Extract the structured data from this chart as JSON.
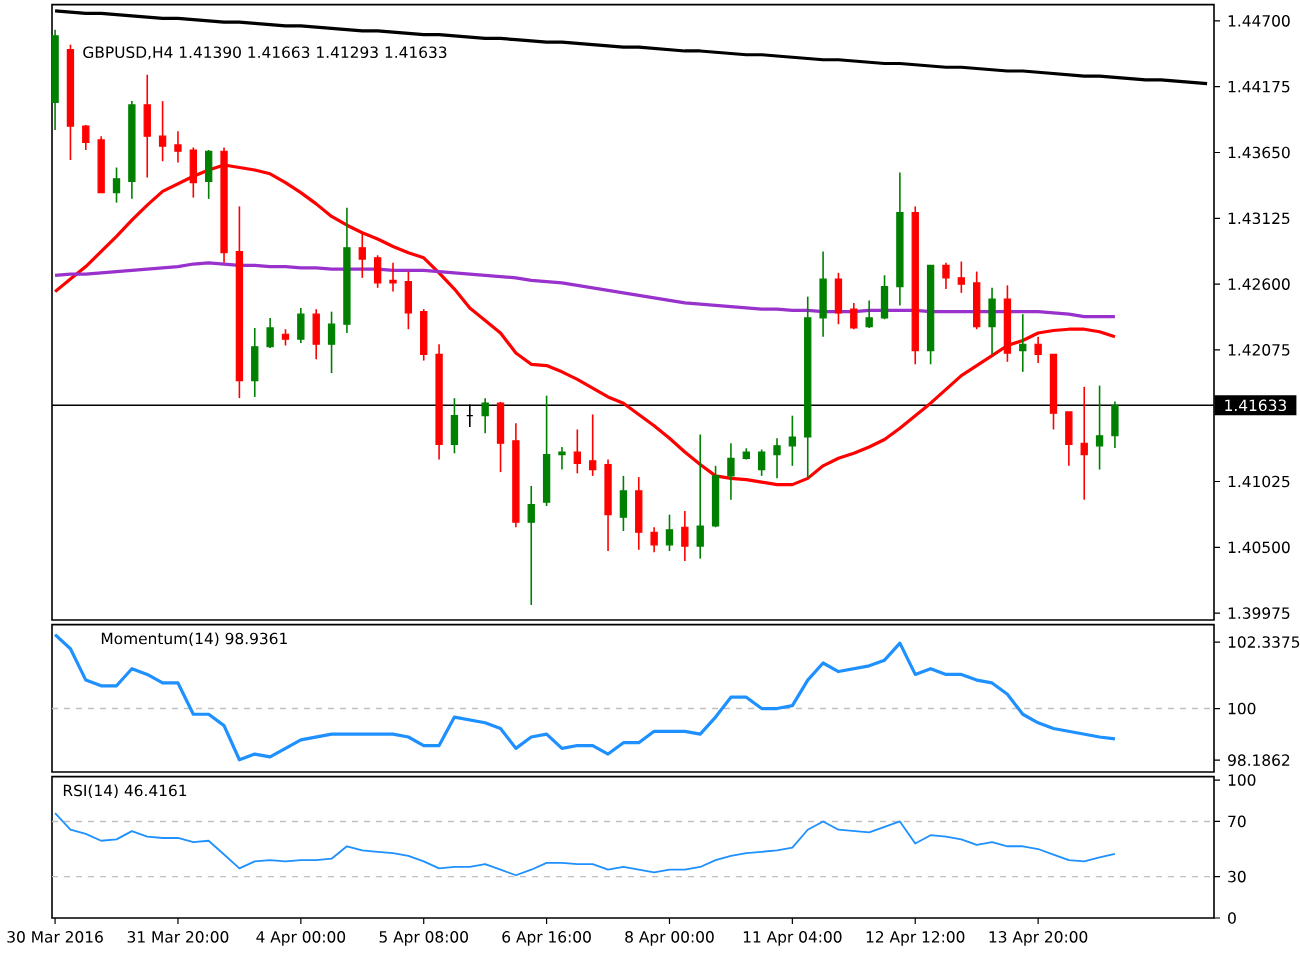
{
  "chart_data": [
    {
      "type": "candlestick",
      "title": "GBPUSD,H4 1.41390 1.41663 1.41293 1.41633",
      "tick_labels": "y",
      "categories": [
        null,
        null,
        null,
        null,
        null,
        null,
        null,
        null,
        null,
        null,
        null,
        null,
        null,
        null,
        null,
        null,
        null,
        null,
        null,
        null,
        null,
        null,
        null,
        null,
        null,
        null,
        null,
        null,
        null,
        null,
        null,
        null,
        null,
        null,
        null,
        null,
        null,
        null,
        null,
        null,
        null,
        null,
        null,
        null,
        null,
        null,
        null,
        null,
        null,
        null,
        null,
        null,
        null,
        null,
        null,
        null,
        null,
        null,
        null,
        null,
        null,
        null,
        null,
        null,
        null,
        null,
        null,
        null,
        null,
        null,
        null,
        null,
        null,
        null,
        null,
        null
      ],
      "ohlc": [
        [
          1.4405,
          1.4463,
          1.4383,
          1.4458
        ],
        [
          1.4447,
          1.4451,
          1.4359,
          1.4386
        ],
        [
          1.4386,
          1.4387,
          1.4367,
          1.4373
        ],
        [
          1.4375,
          1.4378,
          1.4333,
          1.4333
        ],
        [
          1.4333,
          1.4353,
          1.4325,
          1.4344
        ],
        [
          1.4342,
          1.4406,
          1.4328,
          1.4403
        ],
        [
          1.4403,
          1.4427,
          1.4345,
          1.4378
        ],
        [
          1.4378,
          1.4406,
          1.4358,
          1.437
        ],
        [
          1.4371,
          1.4382,
          1.4357,
          1.4366
        ],
        [
          1.4367,
          1.4369,
          1.4329,
          1.4341
        ],
        [
          1.4342,
          1.4367,
          1.4328,
          1.4366
        ],
        [
          1.4366,
          1.4369,
          1.4277,
          1.4285
        ],
        [
          1.4286,
          1.4322,
          1.4169,
          1.4183
        ],
        [
          1.4183,
          1.4225,
          1.417,
          1.421
        ],
        [
          1.421,
          1.4233,
          1.4209,
          1.4225
        ],
        [
          1.422,
          1.4224,
          1.4211,
          1.4216
        ],
        [
          1.4216,
          1.4241,
          1.4213,
          1.4236
        ],
        [
          1.4236,
          1.424,
          1.42,
          1.4212
        ],
        [
          1.4212,
          1.4238,
          1.4189,
          1.4228
        ],
        [
          1.4228,
          1.4321,
          1.4221,
          1.4289
        ],
        [
          1.4289,
          1.4301,
          1.4265,
          1.428
        ],
        [
          1.4281,
          1.4283,
          1.4257,
          1.4261
        ],
        [
          1.4263,
          1.4277,
          1.4254,
          1.4261
        ],
        [
          1.4262,
          1.427,
          1.4224,
          1.4237
        ],
        [
          1.4238,
          1.424,
          1.4199,
          1.4204
        ],
        [
          1.4204,
          1.4212,
          1.412,
          1.4132
        ],
        [
          1.4132,
          1.4169,
          1.4125,
          1.4155
        ],
        [
          1.4155,
          1.4164,
          1.4146,
          1.4155
        ],
        [
          1.4155,
          1.4169,
          1.4141,
          1.4165
        ],
        [
          1.4165,
          1.4166,
          1.411,
          1.4133
        ],
        [
          1.4135,
          1.4149,
          1.4066,
          1.407
        ],
        [
          1.407,
          1.4099,
          1.4004,
          1.4084
        ],
        [
          1.4086,
          1.4171,
          1.4083,
          1.4124
        ],
        [
          1.4124,
          1.413,
          1.4112,
          1.4126
        ],
        [
          1.4126,
          1.4144,
          1.4109,
          1.4117
        ],
        [
          1.4119,
          1.4156,
          1.4107,
          1.4112
        ],
        [
          1.4116,
          1.412,
          1.4047,
          1.4076
        ],
        [
          1.4074,
          1.4107,
          1.4063,
          1.4095
        ],
        [
          1.4095,
          1.4106,
          1.4048,
          1.4062
        ],
        [
          1.4062,
          1.4066,
          1.4046,
          1.4052
        ],
        [
          1.4052,
          1.4076,
          1.4047,
          1.4064
        ],
        [
          1.4066,
          1.4079,
          1.4039,
          1.4051
        ],
        [
          1.4051,
          1.414,
          1.4041,
          1.4067
        ],
        [
          1.4067,
          1.4115,
          1.4066,
          1.4107
        ],
        [
          1.4107,
          1.4133,
          1.4088,
          1.4121
        ],
        [
          1.4121,
          1.4129,
          1.412,
          1.4126
        ],
        [
          1.4112,
          1.4128,
          1.4107,
          1.4126
        ],
        [
          1.4124,
          1.4137,
          1.4105,
          1.4131
        ],
        [
          1.4131,
          1.4155,
          1.4115,
          1.4138
        ],
        [
          1.4138,
          1.425,
          1.4105,
          1.4233
        ],
        [
          1.4233,
          1.4286,
          1.4218,
          1.4264
        ],
        [
          1.4264,
          1.4269,
          1.4228,
          1.4237
        ],
        [
          1.424,
          1.4245,
          1.4224,
          1.4225
        ],
        [
          1.4226,
          1.4247,
          1.4225,
          1.4233
        ],
        [
          1.4233,
          1.4267,
          1.4232,
          1.4258
        ],
        [
          1.4258,
          1.4349,
          1.4243,
          1.4317
        ],
        [
          1.4317,
          1.4322,
          1.4196,
          1.4207
        ],
        [
          1.4207,
          1.4275,
          1.4196,
          1.4275
        ],
        [
          1.4275,
          1.4277,
          1.4256,
          1.4265
        ],
        [
          1.4265,
          1.4278,
          1.4253,
          1.426
        ],
        [
          1.4261,
          1.427,
          1.4224,
          1.4226
        ],
        [
          1.4226,
          1.4257,
          1.4204,
          1.4248
        ],
        [
          1.4248,
          1.4259,
          1.4198,
          1.4205
        ],
        [
          1.4207,
          1.4236,
          1.419,
          1.4212
        ],
        [
          1.4212,
          1.4218,
          1.4197,
          1.4204
        ],
        [
          1.4204,
          1.4204,
          1.4144,
          1.4157
        ],
        [
          1.4158,
          1.4158,
          1.4115,
          1.4132
        ],
        [
          1.4133,
          1.4178,
          1.4088,
          1.4124
        ],
        [
          1.4131,
          1.4179,
          1.4112,
          1.4139
        ],
        [
          1.4139,
          1.41663,
          1.41293,
          1.41633
        ],
        null,
        null,
        null,
        null,
        null,
        null
      ],
      "colors": [
        "#008000",
        "#ff0000",
        "#ff0000",
        "#ff0000",
        "#008000",
        "#008000",
        "#ff0000",
        "#ff0000",
        "#ff0000",
        "#ff0000",
        "#008000",
        "#ff0000",
        "#ff0000",
        "#008000",
        "#008000",
        "#ff0000",
        "#008000",
        "#ff0000",
        "#008000",
        "#008000",
        "#ff0000",
        "#ff0000",
        "#ff0000",
        "#ff0000",
        "#ff0000",
        "#ff0000",
        "#008000",
        "#000000",
        "#008000",
        "#ff0000",
        "#ff0000",
        "#008000",
        "#008000",
        "#008000",
        "#ff0000",
        "#ff0000",
        "#ff0000",
        "#008000",
        "#ff0000",
        "#ff0000",
        "#008000",
        "#ff0000",
        "#008000",
        "#008000",
        "#008000",
        "#008000",
        "#008000",
        "#008000",
        "#008000",
        "#008000",
        "#008000",
        "#ff0000",
        "#ff0000",
        "#008000",
        "#008000",
        "#008000",
        "#ff0000",
        "#008000",
        "#ff0000",
        "#ff0000",
        "#ff0000",
        "#008000",
        "#ff0000",
        "#008000",
        "#ff0000",
        "#ff0000",
        "#ff0000",
        "#ff0000",
        "#008000",
        "#008000",
        null,
        null,
        null,
        null,
        null,
        null
      ],
      "series": [
        {
          "type": "line",
          "color": "#ff0000",
          "values": [
            1.4254,
            1.4264,
            1.4274,
            1.4286,
            1.4298,
            1.4311,
            1.4323,
            1.4334,
            1.434,
            1.4346,
            1.4351,
            1.4355,
            1.4353,
            1.4351,
            1.4348,
            1.4341,
            1.4333,
            1.4324,
            1.4314,
            1.4307,
            1.4301,
            1.4296,
            1.429,
            1.4285,
            1.4281,
            1.4269,
            1.4256,
            1.4241,
            1.4231,
            1.4221,
            1.4205,
            1.4196,
            1.4195,
            1.419,
            1.4184,
            1.4177,
            1.417,
            1.4165,
            1.4156,
            1.4147,
            1.4137,
            1.4126,
            1.4116,
            1.4107,
            1.4105,
            1.4104,
            1.4102,
            1.41,
            1.41,
            1.4105,
            1.4115,
            1.4121,
            1.4125,
            1.413,
            1.4136,
            1.4145,
            1.4155,
            1.4165,
            1.4176,
            1.4187,
            1.4195,
            1.4203,
            1.4211,
            1.4215,
            1.4221,
            1.4223,
            1.4224,
            1.4224,
            1.4222,
            1.4218,
            null,
            null,
            null,
            null,
            null,
            null
          ]
        },
        {
          "type": "line",
          "color": "#9932cc",
          "values": [
            1.4267,
            1.4268,
            1.4268,
            1.4269,
            1.427,
            1.4271,
            1.4272,
            1.4273,
            1.4274,
            1.4276,
            1.4277,
            1.4276,
            1.4275,
            1.4275,
            1.4274,
            1.4274,
            1.4273,
            1.4273,
            1.4272,
            1.4272,
            1.4272,
            1.4272,
            1.4271,
            1.4271,
            1.4271,
            1.427,
            1.4269,
            1.4268,
            1.4267,
            1.4266,
            1.4265,
            1.4263,
            1.4262,
            1.4261,
            1.4259,
            1.4257,
            1.4255,
            1.4253,
            1.4251,
            1.4249,
            1.4247,
            1.4245,
            1.4244,
            1.4243,
            1.4242,
            1.4241,
            1.424,
            1.424,
            1.4239,
            1.4239,
            1.4238,
            1.4238,
            1.4238,
            1.4239,
            1.4239,
            1.4239,
            1.4239,
            1.4238,
            1.4238,
            1.4238,
            1.4238,
            1.4238,
            1.4238,
            1.4238,
            1.4238,
            1.4237,
            1.4236,
            1.4234,
            1.4234,
            1.4234,
            null,
            null,
            null,
            null,
            null,
            null
          ]
        },
        {
          "type": "line",
          "color": "#000000",
          "values": [
            1.4478,
            1.4477,
            1.4476,
            1.4476,
            1.4475,
            1.4474,
            1.4473,
            1.4472,
            1.4472,
            1.4471,
            1.447,
            1.4469,
            1.4469,
            1.4468,
            1.4467,
            1.4466,
            1.4466,
            1.4465,
            1.4464,
            1.4463,
            1.4462,
            1.4462,
            1.4461,
            1.446,
            1.4459,
            1.4459,
            1.4458,
            1.4457,
            1.4456,
            1.4456,
            1.4455,
            1.4454,
            1.4453,
            1.4453,
            1.4452,
            1.4451,
            1.445,
            1.4449,
            1.4449,
            1.4448,
            1.4447,
            1.4446,
            1.4446,
            1.4445,
            1.4444,
            1.4443,
            1.4443,
            1.4442,
            1.4441,
            1.444,
            1.4439,
            1.4439,
            1.4438,
            1.4437,
            1.4436,
            1.4436,
            1.4435,
            1.4434,
            1.4433,
            1.4433,
            1.4432,
            1.4431,
            1.443,
            1.443,
            1.4429,
            1.4428,
            1.4427,
            1.4426,
            1.4426,
            1.4425,
            1.4424,
            1.4423,
            1.4423,
            1.4422,
            1.4421,
            1.442
          ]
        }
      ],
      "ylim": [
        1.3992,
        1.4483
      ],
      "yticks": [
        {
          "value": 1.39975,
          "label": "1.39975"
        },
        {
          "value": 1.405,
          "label": "1.40500"
        },
        {
          "value": 1.41025,
          "label": "1.41025"
        },
        {
          "value": 1.42075,
          "label": "1.42075"
        },
        {
          "value": 1.426,
          "label": "1.42600"
        },
        {
          "value": 1.43125,
          "label": "1.43125"
        },
        {
          "value": 1.4365,
          "label": "1.43650"
        },
        {
          "value": 1.44175,
          "label": "1.44175"
        },
        {
          "value": 1.447,
          "label": "1.44700"
        }
      ],
      "ref_lines": [
        {
          "axis": "y",
          "value": 1.41633,
          "label": "1.41633",
          "color": "#000000"
        }
      ]
    },
    {
      "type": "line",
      "title": "Momentum(14) 98.9361",
      "tick_labels": "y",
      "categories": [
        null,
        null,
        null,
        null,
        null,
        null,
        null,
        null,
        null,
        null,
        null,
        null,
        null,
        null,
        null,
        null,
        null,
        null,
        null,
        null,
        null,
        null,
        null,
        null,
        null,
        null,
        null,
        null,
        null,
        null,
        null,
        null,
        null,
        null,
        null,
        null,
        null,
        null,
        null,
        null,
        null,
        null,
        null,
        null,
        null,
        null,
        null,
        null,
        null,
        null,
        null,
        null,
        null,
        null,
        null,
        null,
        null,
        null,
        null,
        null,
        null,
        null,
        null,
        null,
        null,
        null,
        null,
        null,
        null,
        null,
        null,
        null,
        null,
        null,
        null,
        null
      ],
      "series": [
        {
          "color": "#1e90ff",
          "values": [
            102.6,
            102.1,
            101.0,
            100.8,
            100.8,
            101.4,
            101.2,
            100.9,
            100.9,
            99.8,
            99.8,
            99.4,
            98.2,
            98.4,
            98.3,
            98.6,
            98.9,
            99.0,
            99.1,
            99.1,
            99.1,
            99.1,
            99.1,
            99.0,
            98.7,
            98.7,
            99.7,
            99.6,
            99.5,
            99.3,
            98.6,
            99.0,
            99.1,
            98.6,
            98.7,
            98.7,
            98.4,
            98.8,
            98.8,
            99.2,
            99.2,
            99.2,
            99.1,
            99.7,
            100.4,
            100.4,
            100.0,
            100.0,
            100.1,
            101.0,
            101.6,
            101.3,
            101.4,
            101.5,
            101.7,
            102.3,
            101.2,
            101.4,
            101.2,
            101.2,
            101.0,
            100.9,
            100.5,
            99.8,
            99.5,
            99.3,
            99.2,
            99.1,
            99.0,
            98.9361,
            null,
            null,
            null,
            null,
            null,
            null
          ]
        }
      ],
      "ylim": [
        97.77,
        102.95
      ],
      "yticks": [
        98.1862,
        100,
        102.3375
      ],
      "ref_lines": [
        {
          "axis": "y",
          "value": 100,
          "color": "#c0c0c0",
          "line_style": "dashed"
        }
      ]
    },
    {
      "type": "line",
      "title": "RSI(14) 46.4161",
      "categories": [
        "30 Mar 2016",
        null,
        null,
        null,
        null,
        null,
        null,
        null,
        "31 Mar 20:00",
        null,
        null,
        null,
        null,
        null,
        null,
        null,
        "4 Apr 00:00",
        null,
        null,
        null,
        null,
        null,
        null,
        null,
        "5 Apr 08:00",
        null,
        null,
        null,
        null,
        null,
        null,
        null,
        "6 Apr 16:00",
        null,
        null,
        null,
        null,
        null,
        null,
        null,
        "8 Apr 00:00",
        null,
        null,
        null,
        null,
        null,
        null,
        null,
        "11 Apr 04:00",
        null,
        null,
        null,
        null,
        null,
        null,
        null,
        "12 Apr 12:00",
        null,
        null,
        null,
        null,
        null,
        null,
        null,
        "13 Apr 20:00",
        null,
        null,
        null,
        null,
        null,
        null,
        null,
        null,
        null,
        null,
        null
      ],
      "series": [
        {
          "color": "#1e90ff",
          "values": [
            76,
            64,
            61,
            56,
            57,
            63,
            59,
            58,
            58,
            55,
            56,
            46,
            36,
            41,
            42,
            41,
            42,
            42,
            43,
            52,
            49,
            48,
            47,
            45,
            41,
            36,
            37,
            37,
            39,
            35,
            31,
            35,
            40,
            40,
            39,
            39,
            35,
            37,
            35,
            33,
            35,
            35,
            37,
            42,
            45,
            47,
            48,
            49,
            51,
            64,
            70,
            64,
            63,
            62,
            66,
            70,
            54,
            60,
            59,
            57,
            53,
            55,
            52,
            52,
            50,
            46,
            42,
            41,
            44,
            46.4161,
            null,
            null,
            null,
            null,
            null,
            null
          ]
        }
      ],
      "ylim": [
        0,
        102.5
      ],
      "yticks": [
        0,
        30,
        70,
        100
      ],
      "ref_lines": [
        {
          "axis": "y",
          "value": 70,
          "color": "#c0c0c0",
          "line_style": "dashed"
        },
        {
          "axis": "y",
          "value": 30,
          "color": "#c0c0c0",
          "line_style": "dashed"
        }
      ]
    }
  ]
}
